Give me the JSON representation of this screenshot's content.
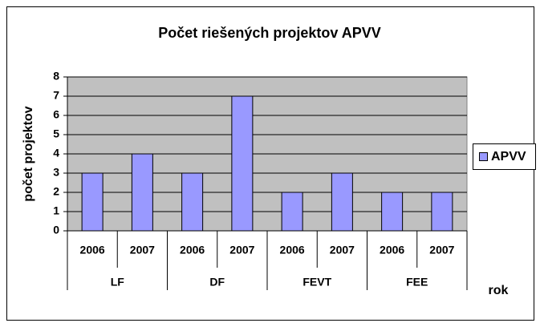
{
  "chart_data": {
    "type": "bar",
    "title": "Počet riešených projektov APVV",
    "y_label": "počet projektov",
    "x_label": "rok",
    "categories": [
      "2006",
      "2007",
      "2006",
      "2007",
      "2006",
      "2007",
      "2006",
      "2007"
    ],
    "groups": [
      "LF",
      "DF",
      "FEVT",
      "FEE"
    ],
    "series": [
      {
        "name": "APVV",
        "color": "#9999ff",
        "values": [
          3,
          4,
          3,
          7,
          2,
          3,
          2,
          2
        ]
      }
    ],
    "ylim": [
      0,
      8
    ],
    "yticks": [
      0,
      1,
      2,
      3,
      4,
      5,
      6,
      7,
      8
    ],
    "grid": true,
    "plot_background": "#c0c0c0",
    "legend": "right"
  }
}
